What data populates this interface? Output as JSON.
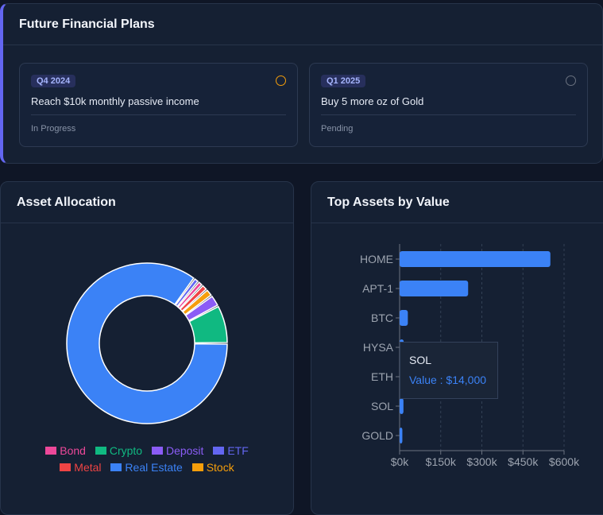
{
  "plans": {
    "title": "Future Financial Plans",
    "items": [
      {
        "quarter": "Q4 2024",
        "goal": "Reach $10k monthly passive income",
        "status": "In Progress"
      },
      {
        "quarter": "Q1 2025",
        "goal": "Buy 5 more oz of Gold",
        "status": "Pending"
      }
    ]
  },
  "allocation": {
    "title": "Asset Allocation",
    "legend": [
      {
        "label": "Bond",
        "color": "#ec4899"
      },
      {
        "label": "Crypto",
        "color": "#10b981"
      },
      {
        "label": "Deposit",
        "color": "#8b5cf6"
      },
      {
        "label": "ETF",
        "color": "#6366f1"
      },
      {
        "label": "Metal",
        "color": "#ef4444"
      },
      {
        "label": "Real Estate",
        "color": "#3b82f6"
      },
      {
        "label": "Stock",
        "color": "#f59e0b"
      }
    ]
  },
  "top_assets": {
    "title": "Top Assets by Value",
    "tooltip": {
      "name": "SOL",
      "value_label": "Value : $14,000"
    }
  },
  "chart_data": [
    {
      "type": "pie",
      "categories": [
        "Real Estate",
        "ETF",
        "Bond",
        "Metal",
        "Stock",
        "Deposit",
        "Crypto"
      ],
      "values": [
        82.5,
        1.0,
        1.0,
        1.2,
        1.5,
        2.3,
        7.5
      ],
      "colors": [
        "#3b82f6",
        "#6366f1",
        "#ec4899",
        "#ef4444",
        "#f59e0b",
        "#8b5cf6",
        "#10b981"
      ]
    },
    {
      "type": "bar",
      "orientation": "horizontal",
      "categories": [
        "HOME",
        "APT-1",
        "BTC",
        "HYSA",
        "ETH",
        "SOL",
        "GOLD"
      ],
      "values": [
        550000,
        250000,
        30000,
        15000,
        12000,
        14000,
        10000
      ],
      "xlim": [
        0,
        600000
      ],
      "xticks": [
        "$0k",
        "$150k",
        "$300k",
        "$450k",
        "$600k"
      ],
      "xtick_values": [
        0,
        150000,
        300000,
        450000,
        600000
      ],
      "color": "#3b82f6",
      "grid": true
    }
  ]
}
